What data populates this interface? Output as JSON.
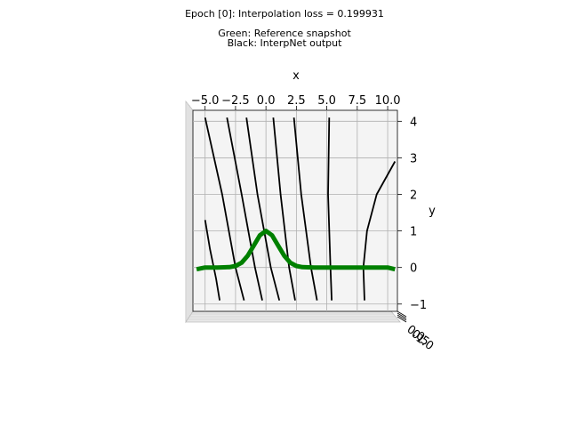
{
  "titles": {
    "line1": "Epoch [0]: Interpolation loss = 0.199931",
    "line2": "Green: Reference snapshot",
    "line3": "Black: InterpNet output"
  },
  "chart_data": {
    "type": "line",
    "projection": "3d",
    "xlabel": "x",
    "ylabel": "y",
    "zlabel": "",
    "xlim": [
      -6,
      10.8
    ],
    "ylim": [
      -1.2,
      4.3
    ],
    "x_ticks": [
      -5.0,
      -2.5,
      0.0,
      2.5,
      5.0,
      7.5,
      10.0
    ],
    "x_tick_labels": [
      "−5.0",
      "−2.5",
      "0.0",
      "2.5",
      "5.0",
      "7.5",
      "10.0"
    ],
    "y_ticks": [
      -1,
      0,
      1,
      2,
      3,
      4
    ],
    "y_tick_labels": [
      "−1",
      "0",
      "1",
      "2",
      "3",
      "4"
    ],
    "z_tick_labels": [
      "0.0",
      "0.5",
      "1.0"
    ],
    "grid": true,
    "reference_color": "#008000",
    "output_color": "#000000",
    "reference_snapshot": {
      "x": [
        -5.7,
        -5.0,
        -4.0,
        -3.0,
        -2.5,
        -2.0,
        -1.5,
        -1.0,
        -0.5,
        0.0,
        0.5,
        1.0,
        1.5,
        2.0,
        2.5,
        3.0,
        4.0,
        6.0,
        8.0,
        10.0,
        10.6
      ],
      "y": [
        -0.05,
        0.0,
        0.0,
        0.01,
        0.04,
        0.13,
        0.32,
        0.6,
        0.88,
        1.0,
        0.88,
        0.6,
        0.32,
        0.13,
        0.04,
        0.01,
        0.0,
        0.0,
        0.0,
        0.0,
        -0.05
      ]
    },
    "interpnet_output": [
      {
        "points": [
          [
            -5.0,
            1.3
          ],
          [
            -4.6,
            0.5
          ],
          [
            -4.1,
            -0.3
          ],
          [
            -3.8,
            -0.9
          ]
        ]
      },
      {
        "points": [
          [
            -5.0,
            4.1
          ],
          [
            -3.6,
            2.0
          ],
          [
            -2.5,
            0.0
          ],
          [
            -1.8,
            -0.9
          ]
        ]
      },
      {
        "points": [
          [
            -3.2,
            4.1
          ],
          [
            -2.0,
            2.0
          ],
          [
            -0.9,
            0.0
          ],
          [
            -0.3,
            -0.9
          ]
        ]
      },
      {
        "points": [
          [
            -1.6,
            4.1
          ],
          [
            -0.7,
            2.0
          ],
          [
            0.4,
            0.0
          ],
          [
            1.1,
            -0.9
          ]
        ]
      },
      {
        "points": [
          [
            0.6,
            4.1
          ],
          [
            1.2,
            2.0
          ],
          [
            1.9,
            0.0
          ],
          [
            2.4,
            -0.9
          ]
        ]
      },
      {
        "points": [
          [
            2.3,
            4.1
          ],
          [
            2.9,
            2.0
          ],
          [
            3.7,
            0.0
          ],
          [
            4.2,
            -0.9
          ]
        ]
      },
      {
        "points": [
          [
            5.2,
            4.1
          ],
          [
            5.1,
            2.0
          ],
          [
            5.3,
            0.0
          ],
          [
            5.4,
            -0.9
          ]
        ]
      },
      {
        "points": [
          [
            8.1,
            -0.9
          ],
          [
            8.0,
            0.0
          ],
          [
            8.3,
            1.0
          ],
          [
            9.1,
            2.0
          ],
          [
            10.6,
            2.9
          ]
        ]
      }
    ]
  }
}
